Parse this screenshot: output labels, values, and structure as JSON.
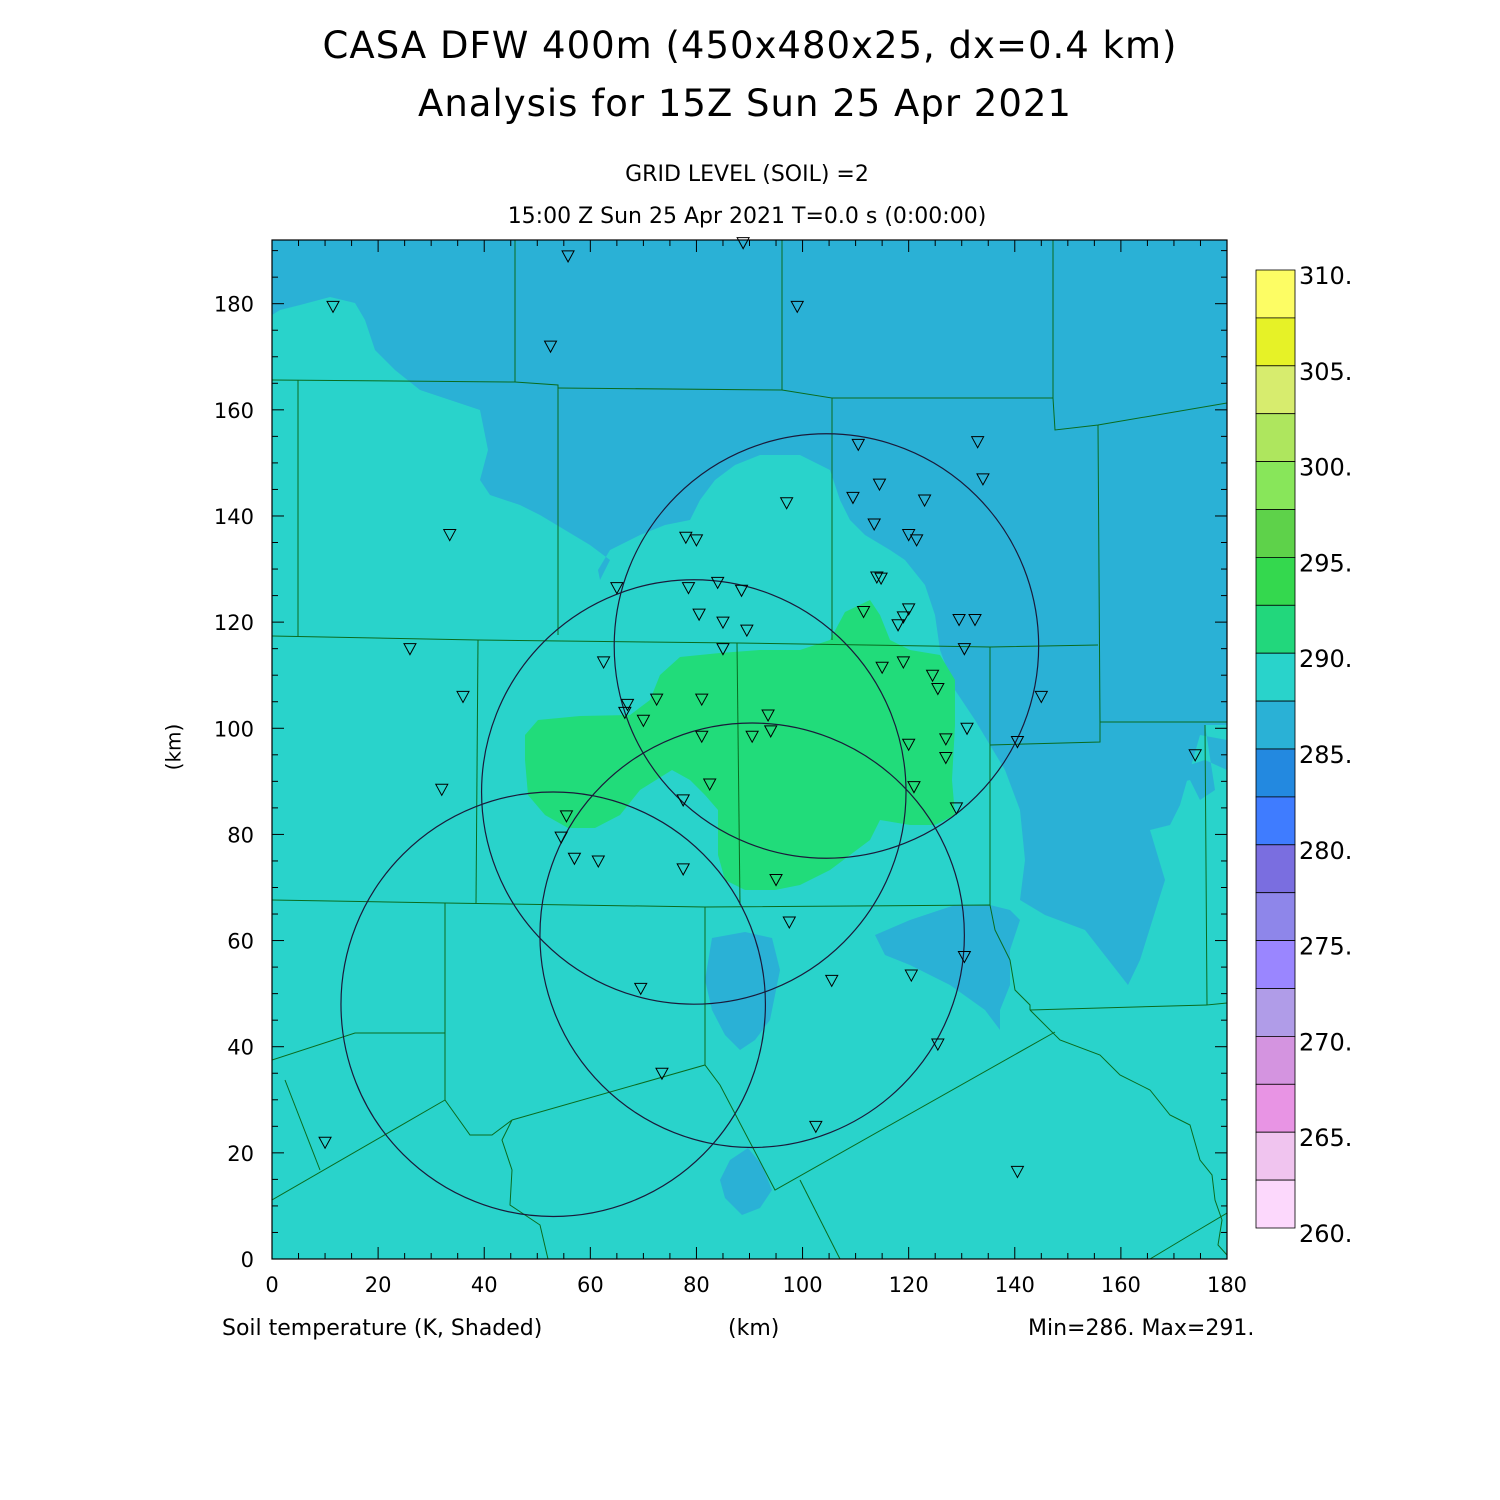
{
  "title_line1": "CASA DFW 400m (450x480x25, dx=0.4 km)",
  "title_line2": "Analysis for 15Z Sun 25 Apr 2021",
  "subtitle_line1": "GRID LEVEL (SOIL) =2",
  "subtitle_line2": "15:00 Z Sun 25 Apr 2021   T=0.0 s (0:00:00)",
  "footer_left": "Soil temperature (K, Shaded)",
  "footer_center": "(km)",
  "footer_right": "Min=286. Max=291.",
  "colors": {
    "field_289": "#29d3cb",
    "field_286": "#2ab1d6",
    "field_291": "#21dc7a",
    "county_lines": "#0a6b1e",
    "radar_rings": "#1a1a3a"
  },
  "chart_data": {
    "type": "heatmap",
    "xlabel": "(km)",
    "ylabel": "(km)",
    "xlim": [
      0,
      180
    ],
    "ylim": [
      0,
      192
    ],
    "x_ticks": [
      0,
      20,
      40,
      60,
      80,
      100,
      120,
      140,
      160,
      180
    ],
    "y_ticks": [
      0,
      20,
      40,
      60,
      80,
      100,
      120,
      140,
      160,
      180
    ],
    "colorbar": {
      "levels": [
        "310.",
        "305.",
        "300.",
        "295.",
        "290.",
        "285.",
        "280.",
        "275.",
        "270.",
        "265.",
        "260."
      ],
      "level_values": [
        310,
        305,
        300,
        295,
        290,
        285,
        280,
        275,
        270,
        265,
        260
      ],
      "bins_top_to_bottom": [
        "#fdfd64",
        "#e6f227",
        "#d7ec6e",
        "#aee65e",
        "#88e65a",
        "#5ed24a",
        "#34d84e",
        "#22d77c",
        "#29d3cb",
        "#2ab1d6",
        "#2389e0",
        "#3f7cff",
        "#7a6ee0",
        "#8e86ea",
        "#9a86ff",
        "#b09ce8",
        "#d494e0",
        "#e894e4",
        "#f0c4ef",
        "#fcd8fc"
      ]
    },
    "radar_rings": [
      {
        "center": [
          104.5,
          115.5
        ],
        "radius": 40
      },
      {
        "center": [
          79.5,
          88
        ],
        "radius": 40
      },
      {
        "center": [
          90.5,
          61
        ],
        "radius": 40
      },
      {
        "center": [
          53,
          48
        ],
        "radius": 40
      }
    ],
    "stations": [
      [
        11.5,
        179.5
      ],
      [
        55.8,
        189
      ],
      [
        88.8,
        191.5
      ],
      [
        99,
        179.5
      ],
      [
        52.5,
        172
      ],
      [
        33.5,
        136.5
      ],
      [
        97,
        142.5
      ],
      [
        110.5,
        153.5
      ],
      [
        133,
        154
      ],
      [
        134,
        147
      ],
      [
        114.5,
        146
      ],
      [
        109.5,
        143.5
      ],
      [
        123,
        143
      ],
      [
        113.5,
        138.5
      ],
      [
        120,
        136.5
      ],
      [
        121.5,
        135.5
      ],
      [
        78,
        136
      ],
      [
        80,
        135.5
      ],
      [
        65,
        126.5
      ],
      [
        78.5,
        126.5
      ],
      [
        84,
        127.5
      ],
      [
        88.5,
        126
      ],
      [
        114,
        128.5
      ],
      [
        114.8,
        128.3
      ],
      [
        80.5,
        121.5
      ],
      [
        111.5,
        122
      ],
      [
        120,
        122.5
      ],
      [
        119,
        121
      ],
      [
        118,
        119.5
      ],
      [
        85,
        120
      ],
      [
        89.5,
        118.5
      ],
      [
        129.5,
        120.5
      ],
      [
        132.5,
        120.5
      ],
      [
        26,
        115
      ],
      [
        85,
        115
      ],
      [
        130.5,
        115
      ],
      [
        62.5,
        112.5
      ],
      [
        115,
        111.5
      ],
      [
        119,
        112.5
      ],
      [
        124.5,
        110
      ],
      [
        125.5,
        107.5
      ],
      [
        36,
        106
      ],
      [
        67,
        104.5
      ],
      [
        66.5,
        103
      ],
      [
        72.5,
        105.5
      ],
      [
        81,
        105.5
      ],
      [
        70,
        101.5
      ],
      [
        93.5,
        102.5
      ],
      [
        94,
        99.5
      ],
      [
        131,
        100
      ],
      [
        81,
        98.5
      ],
      [
        90.5,
        98.5
      ],
      [
        120,
        97
      ],
      [
        127,
        98
      ],
      [
        140.5,
        97.5
      ],
      [
        145,
        106
      ],
      [
        174,
        95
      ],
      [
        127,
        94.5
      ],
      [
        32,
        88.5
      ],
      [
        82.5,
        89.5
      ],
      [
        121,
        89
      ],
      [
        77.5,
        86.5
      ],
      [
        55.5,
        83.5
      ],
      [
        129,
        85
      ],
      [
        54.5,
        79.5
      ],
      [
        57,
        75.5
      ],
      [
        61.5,
        75
      ],
      [
        77.5,
        73.5
      ],
      [
        95,
        71.5
      ],
      [
        97.5,
        63.5
      ],
      [
        130.5,
        57
      ],
      [
        120.5,
        53.5
      ],
      [
        105.5,
        52.5
      ],
      [
        69.5,
        51
      ],
      [
        125.5,
        40.5
      ],
      [
        73.5,
        35
      ],
      [
        10,
        22
      ],
      [
        102.5,
        25
      ],
      [
        140.5,
        16.5
      ]
    ]
  }
}
